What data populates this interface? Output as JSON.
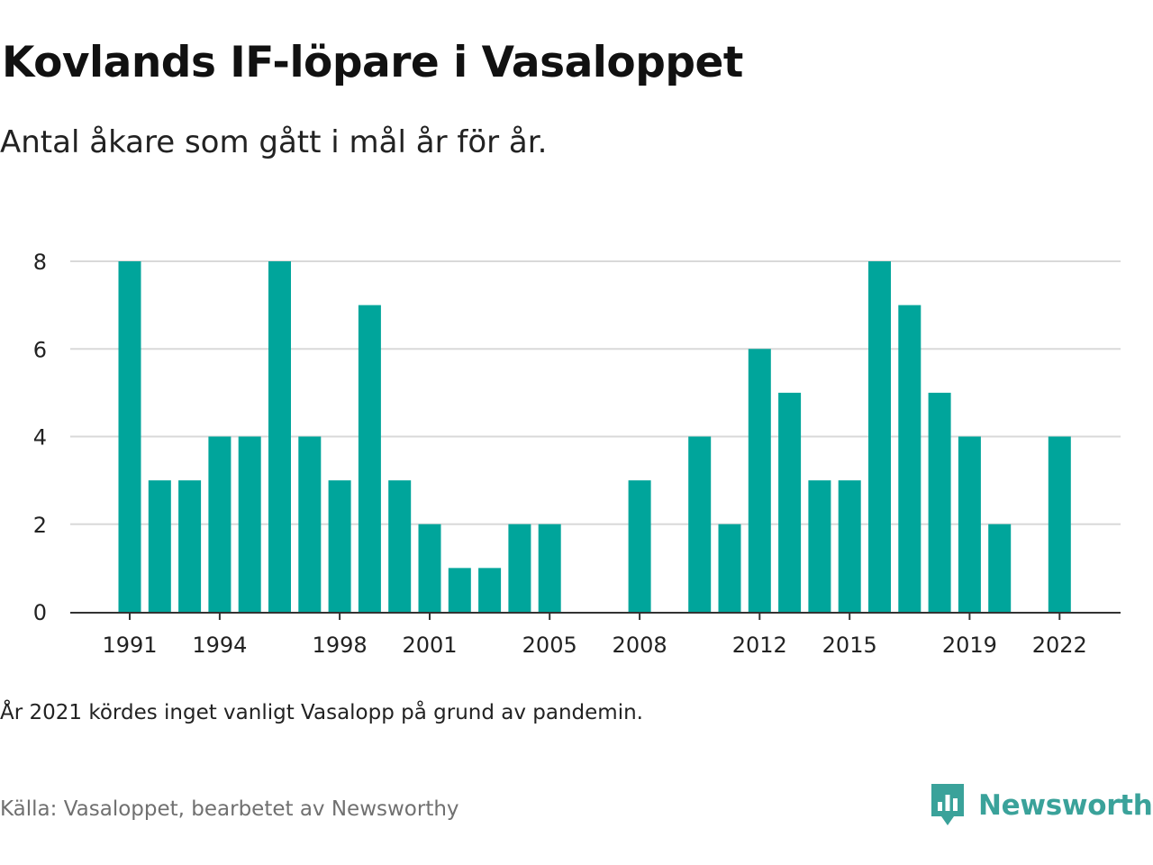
{
  "title": "Kovlands IF-löpare i Vasaloppet",
  "subtitle": "Antal åkare som gått i mål år för år.",
  "note": "År 2021 kördes inget vanligt Vasalopp på grund av pandemin.",
  "source": "Källa: Vasaloppet, bearbetet av Newsworthy",
  "brand": {
    "name": "Newsworthy",
    "icon": "newsworthy-logo-icon"
  },
  "colors": {
    "bar": "#00a59b",
    "grid": "#d9d9d9",
    "axis": "#333333",
    "brand": "#3aa29a"
  },
  "chart_data": {
    "type": "bar",
    "years": [
      1991,
      1992,
      1993,
      1994,
      1995,
      1996,
      1997,
      1998,
      1999,
      2000,
      2001,
      2002,
      2003,
      2004,
      2005,
      2006,
      2007,
      2008,
      2009,
      2010,
      2011,
      2012,
      2013,
      2014,
      2015,
      2016,
      2017,
      2018,
      2019,
      2020,
      2021,
      2022
    ],
    "values": [
      8,
      3,
      3,
      4,
      4,
      8,
      4,
      3,
      7,
      3,
      2,
      1,
      1,
      2,
      2,
      0,
      0,
      3,
      0,
      4,
      2,
      6,
      5,
      3,
      3,
      8,
      7,
      5,
      4,
      2,
      0,
      4
    ],
    "x_tick_labels": [
      "1991",
      "1994",
      "1998",
      "2001",
      "2005",
      "2008",
      "2012",
      "2015",
      "2019",
      "2022"
    ],
    "y_ticks": [
      0,
      2,
      4,
      6,
      8
    ],
    "ylim": [
      0,
      8
    ],
    "grid": true,
    "xlabel": "",
    "ylabel": ""
  }
}
